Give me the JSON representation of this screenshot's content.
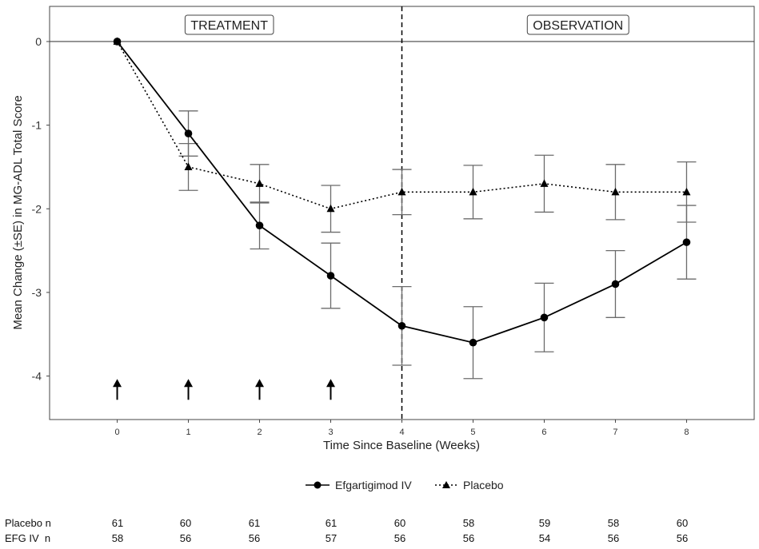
{
  "chart_data": {
    "type": "line",
    "xlabel": "Time Since Baseline (Weeks)",
    "ylabel": "Mean Change (±SE) in MG-ADL Total Score",
    "x": [
      0,
      1,
      2,
      3,
      4,
      5,
      6,
      7,
      8
    ],
    "x_ticks": [
      "0",
      "1",
      "2",
      "3",
      "4",
      "5",
      "6",
      "7",
      "8"
    ],
    "y_ticks": [
      "0",
      "-1",
      "-2",
      "-3",
      "-4"
    ],
    "xlim": [
      -0.95,
      8.95
    ],
    "ylim": [
      -4.52,
      0.42
    ],
    "grid": false,
    "reference_line_y": 0,
    "phase_divider_x": 4,
    "phases": [
      "TREATMENT",
      "OBSERVATION"
    ],
    "dose_arrows_x": [
      0,
      1,
      2,
      3
    ],
    "dose_arrow_y": -4.15,
    "legend_position": "bottom",
    "series": [
      {
        "name": "Efgartigimod IV",
        "marker": "circle",
        "line_style": "solid",
        "values": [
          0,
          -1.1,
          -2.2,
          -2.8,
          -3.4,
          -3.6,
          -3.3,
          -2.9,
          -2.4
        ],
        "se_lower": [
          0,
          -1.37,
          -2.48,
          -3.19,
          -3.87,
          -4.03,
          -3.71,
          -3.3,
          -2.84
        ],
        "se_upper": [
          0,
          -0.83,
          -1.92,
          -2.41,
          -2.93,
          -3.17,
          -2.89,
          -2.5,
          -1.96
        ]
      },
      {
        "name": "Placebo",
        "marker": "triangle",
        "line_style": "dotted",
        "values": [
          0,
          -1.5,
          -1.7,
          -2.0,
          -1.8,
          -1.8,
          -1.7,
          -1.8,
          -1.8
        ],
        "se_lower": [
          0,
          -1.78,
          -1.93,
          -2.28,
          -2.07,
          -2.12,
          -2.04,
          -2.13,
          -2.16
        ],
        "se_upper": [
          0,
          -1.22,
          -1.47,
          -1.72,
          -1.53,
          -1.48,
          -1.36,
          -1.47,
          -1.44
        ]
      }
    ],
    "colors": {
      "line": "#000000",
      "error_bar": "#6b6b6b",
      "axis": "#444444",
      "text": "#333333",
      "divider": "#000000"
    }
  },
  "number_at_risk": [
    {
      "label": "Placebo n",
      "values": [
        "61",
        "60",
        "61",
        "61",
        "60",
        "58",
        "59",
        "58",
        "60"
      ]
    },
    {
      "label": "EFG IV  n",
      "values": [
        "58",
        "56",
        "56",
        "57",
        "56",
        "56",
        "54",
        "56",
        "56"
      ]
    }
  ]
}
